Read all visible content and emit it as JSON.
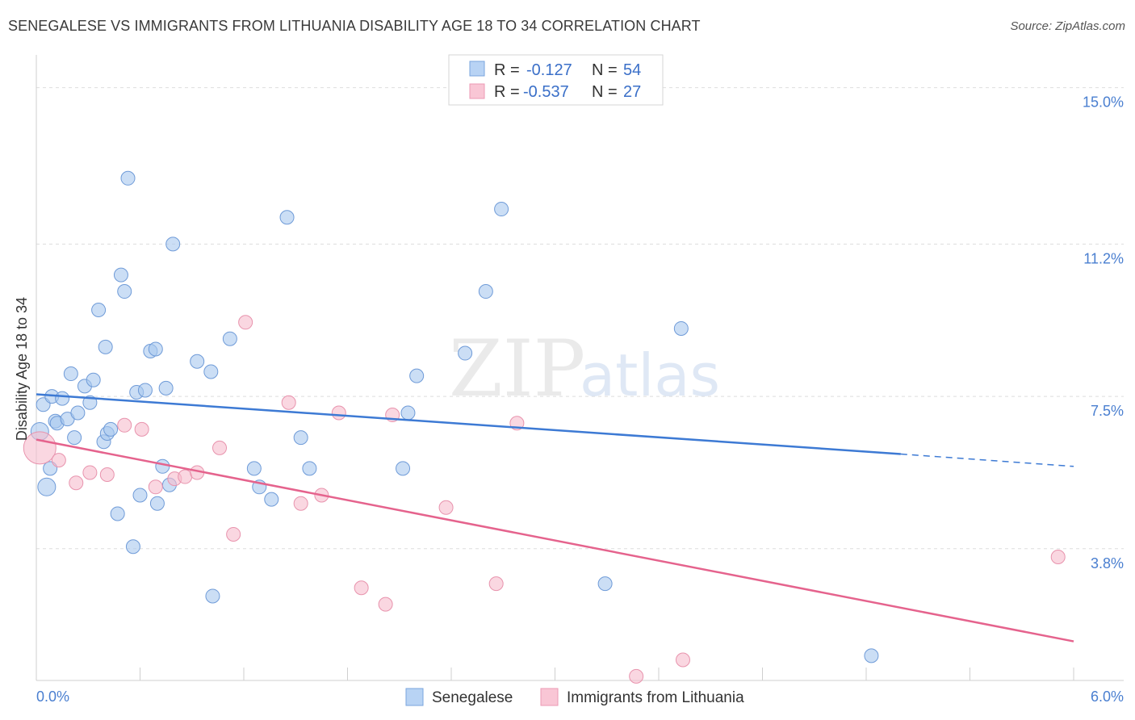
{
  "chart_data": {
    "type": "scatter",
    "title": "SENEGALESE VS IMMIGRANTS FROM LITHUANIA DISABILITY AGE 18 TO 34 CORRELATION CHART",
    "source": "Source: ZipAtlas.com",
    "watermark": {
      "bold": "ZIP",
      "light": "atlas"
    },
    "ylabel": "Disability Age 18 to 34",
    "xlabel": "",
    "xlim": [
      0.0,
      6.0
    ],
    "ylim": [
      0.6,
      15.6
    ],
    "x_tick_labels": [
      "0.0%",
      "6.0%"
    ],
    "y_ticks": [
      {
        "value": 3.8,
        "label": "3.8%"
      },
      {
        "value": 7.5,
        "label": "7.5%"
      },
      {
        "value": 11.2,
        "label": "11.2%"
      },
      {
        "value": 15.0,
        "label": "15.0%"
      }
    ],
    "legend": {
      "r_label": "R =",
      "n_label": "N =",
      "entries": [
        {
          "name": "Senegalese",
          "r": "-0.127",
          "n": "54"
        },
        {
          "name": "Immigrants from Lithuania",
          "r": "-0.537",
          "n": "27"
        }
      ]
    },
    "series": [
      {
        "name": "Senegalese",
        "color": "#a9c8ef",
        "stroke": "#6f9bd8",
        "line_color": "#3d7ad4",
        "trend": {
          "x0": 0.0,
          "y0": 7.55,
          "x1": 5.0,
          "y1": 6.1,
          "dash_to_x": 6.0,
          "dash_to_y": 5.8
        },
        "points": [
          [
            0.04,
            7.3
          ],
          [
            0.09,
            7.5
          ],
          [
            0.11,
            6.9
          ],
          [
            0.12,
            6.85
          ],
          [
            0.15,
            7.45
          ],
          [
            0.18,
            6.95
          ],
          [
            0.2,
            8.05
          ],
          [
            0.22,
            6.5
          ],
          [
            0.24,
            7.1
          ],
          [
            0.28,
            7.75
          ],
          [
            0.31,
            7.35
          ],
          [
            0.33,
            7.9
          ],
          [
            0.36,
            9.6
          ],
          [
            0.39,
            6.4
          ],
          [
            0.41,
            6.6
          ],
          [
            0.43,
            6.7
          ],
          [
            0.47,
            4.65
          ],
          [
            0.49,
            10.45
          ],
          [
            0.51,
            10.05
          ],
          [
            0.53,
            12.8
          ],
          [
            0.56,
            3.85
          ],
          [
            0.58,
            7.6
          ],
          [
            0.6,
            5.1
          ],
          [
            0.63,
            7.65
          ],
          [
            0.66,
            8.6
          ],
          [
            0.69,
            8.65
          ],
          [
            0.7,
            4.9
          ],
          [
            0.75,
            7.7
          ],
          [
            0.79,
            11.2
          ],
          [
            0.73,
            5.8
          ],
          [
            0.77,
            5.35
          ],
          [
            0.93,
            8.35
          ],
          [
            1.01,
            8.1
          ],
          [
            1.02,
            2.65
          ],
          [
            1.12,
            8.9
          ],
          [
            1.26,
            5.75
          ],
          [
            1.29,
            5.3
          ],
          [
            1.36,
            5.0
          ],
          [
            1.45,
            11.85
          ],
          [
            1.53,
            6.5
          ],
          [
            1.58,
            5.75
          ],
          [
            2.12,
            5.75
          ],
          [
            2.15,
            7.1
          ],
          [
            2.2,
            8.0
          ],
          [
            2.48,
            8.55
          ],
          [
            2.6,
            10.05
          ],
          [
            2.69,
            12.05
          ],
          [
            3.29,
            2.95
          ],
          [
            3.73,
            9.15
          ],
          [
            4.83,
            1.2
          ],
          [
            0.02,
            6.65
          ],
          [
            0.06,
            5.3
          ],
          [
            0.08,
            5.75
          ],
          [
            0.4,
            8.7
          ]
        ]
      },
      {
        "name": "Immigrants from Lithuania",
        "color": "#f7bccd",
        "stroke": "#e893ad",
        "line_color": "#e5638d",
        "trend": {
          "x0": 0.0,
          "y0": 6.45,
          "x1": 6.0,
          "y1": 1.55
        },
        "points": [
          [
            0.02,
            6.25
          ],
          [
            0.13,
            5.95
          ],
          [
            0.23,
            5.4
          ],
          [
            0.31,
            5.65
          ],
          [
            0.41,
            5.6
          ],
          [
            0.51,
            6.8
          ],
          [
            0.61,
            6.7
          ],
          [
            0.69,
            5.3
          ],
          [
            0.8,
            5.5
          ],
          [
            0.86,
            5.55
          ],
          [
            0.93,
            5.65
          ],
          [
            1.06,
            6.25
          ],
          [
            1.14,
            4.15
          ],
          [
            1.21,
            9.3
          ],
          [
            1.46,
            7.35
          ],
          [
            1.53,
            4.9
          ],
          [
            1.65,
            5.1
          ],
          [
            1.75,
            7.1
          ],
          [
            1.88,
            2.85
          ],
          [
            2.02,
            2.45
          ],
          [
            2.06,
            7.05
          ],
          [
            2.37,
            4.8
          ],
          [
            2.66,
            2.95
          ],
          [
            2.78,
            6.85
          ],
          [
            3.47,
            0.7
          ],
          [
            3.74,
            1.1
          ],
          [
            5.91,
            3.6
          ]
        ]
      }
    ]
  }
}
